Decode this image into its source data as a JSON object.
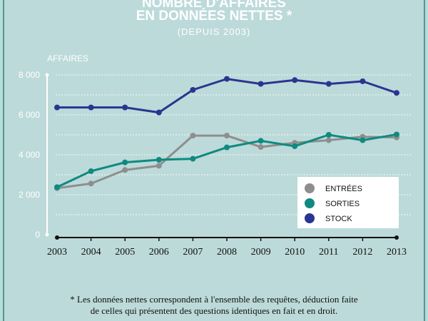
{
  "chart_data": {
    "type": "line",
    "title": "NOMBRE D'AFFAIRES",
    "title_line2": "EN DONNÉES NETTES *",
    "subtitle": "(DEPUIS 2003)",
    "ylabel": "AFFAIRES",
    "xlabel": "",
    "ylim": [
      0,
      8000
    ],
    "yticks": [
      "0",
      "2 000",
      "4 000",
      "6 000",
      "8 000"
    ],
    "ytick_values": [
      0,
      2000,
      4000,
      6000,
      8000
    ],
    "categories": [
      "2003",
      "2004",
      "2005",
      "2006",
      "2007",
      "2008",
      "2009",
      "2010",
      "2011",
      "2012",
      "2013"
    ],
    "grid": true,
    "legend_position": "bottom-right",
    "series": [
      {
        "name": "ENTRÉES",
        "color": "#8e8e8e",
        "values": [
          2330,
          2560,
          3240,
          3450,
          4960,
          4960,
          4390,
          4600,
          4730,
          4900,
          4870
        ]
      },
      {
        "name": "SORTIES",
        "color": "#0f8a80",
        "values": [
          2380,
          3180,
          3620,
          3750,
          3800,
          4370,
          4700,
          4430,
          5000,
          4730,
          5020
        ]
      },
      {
        "name": "STOCK",
        "color": "#2a3590",
        "values": [
          6370,
          6370,
          6370,
          6120,
          7250,
          7800,
          7550,
          7740,
          7550,
          7680,
          7100
        ]
      }
    ]
  },
  "footnote": [
    "* Les données nettes correspondent à l'ensemble des requêtes, déduction faite",
    "de celles qui présentent des questions identiques en fait et en droit."
  ]
}
